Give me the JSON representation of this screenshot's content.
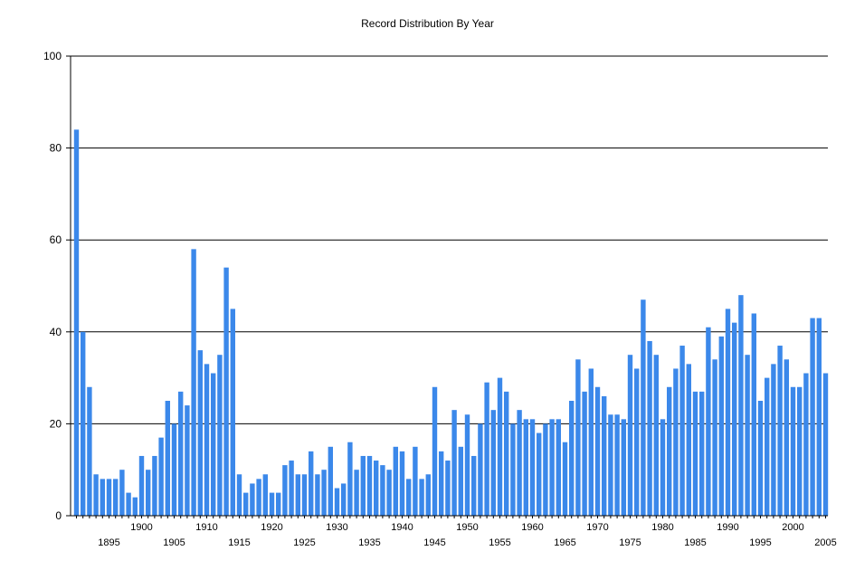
{
  "chart_data": {
    "type": "bar",
    "title": "Record Distribution By Year",
    "xlabel": "",
    "ylabel": "",
    "ylim": [
      0,
      100
    ],
    "yticks": [
      0,
      20,
      40,
      60,
      80,
      100
    ],
    "bar_color": "#3b88ea",
    "gridlines": "horizontal",
    "x_tick_years": [
      1895,
      1900,
      1905,
      1910,
      1915,
      1920,
      1925,
      1930,
      1935,
      1940,
      1945,
      1950,
      1955,
      1960,
      1965,
      1970,
      1975,
      1980,
      1985,
      1990,
      1995,
      2000,
      2005
    ],
    "categories": [
      1890,
      1891,
      1892,
      1893,
      1894,
      1895,
      1896,
      1897,
      1898,
      1899,
      1900,
      1901,
      1902,
      1903,
      1904,
      1905,
      1906,
      1907,
      1908,
      1909,
      1910,
      1911,
      1912,
      1913,
      1914,
      1915,
      1916,
      1917,
      1918,
      1919,
      1920,
      1921,
      1922,
      1923,
      1924,
      1925,
      1926,
      1927,
      1928,
      1929,
      1930,
      1931,
      1932,
      1933,
      1934,
      1935,
      1936,
      1937,
      1938,
      1939,
      1940,
      1941,
      1942,
      1943,
      1944,
      1945,
      1946,
      1947,
      1948,
      1949,
      1950,
      1951,
      1952,
      1953,
      1954,
      1955,
      1956,
      1957,
      1958,
      1959,
      1960,
      1961,
      1962,
      1963,
      1964,
      1965,
      1966,
      1967,
      1968,
      1969,
      1970,
      1971,
      1972,
      1973,
      1974,
      1975,
      1976,
      1977,
      1978,
      1979,
      1980,
      1981,
      1982,
      1983,
      1984,
      1985,
      1986,
      1987,
      1988,
      1989,
      1990,
      1991,
      1992,
      1993,
      1994,
      1995,
      1996,
      1997,
      1998,
      1999,
      2000,
      2001,
      2002,
      2003,
      2004,
      2005
    ],
    "values": [
      84,
      40,
      28,
      9,
      8,
      8,
      8,
      10,
      5,
      4,
      13,
      10,
      13,
      17,
      25,
      20,
      27,
      24,
      58,
      36,
      33,
      31,
      35,
      54,
      45,
      9,
      5,
      7,
      8,
      9,
      5,
      5,
      11,
      12,
      9,
      9,
      14,
      9,
      10,
      15,
      6,
      7,
      16,
      10,
      13,
      13,
      12,
      11,
      10,
      15,
      14,
      8,
      15,
      8,
      9,
      28,
      14,
      12,
      23,
      15,
      22,
      13,
      20,
      29,
      23,
      30,
      27,
      20,
      23,
      21,
      21,
      18,
      20,
      21,
      21,
      16,
      25,
      34,
      27,
      32,
      28,
      26,
      22,
      22,
      21,
      35,
      32,
      47,
      38,
      35,
      21,
      28,
      32,
      37,
      33,
      27,
      27,
      41,
      34,
      39,
      45,
      42,
      48,
      35,
      44,
      25,
      30,
      33,
      37,
      34,
      28,
      28,
      31,
      43,
      43,
      31
    ]
  }
}
